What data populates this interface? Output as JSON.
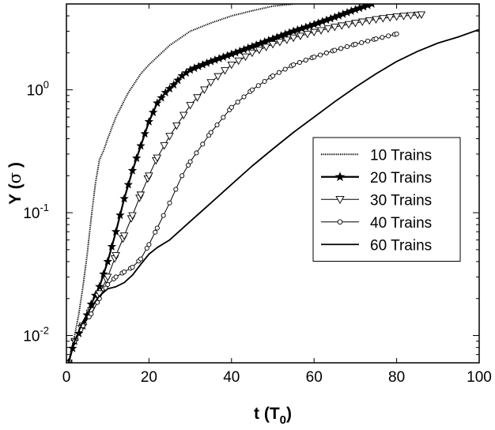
{
  "chart_data": {
    "type": "line",
    "title": "",
    "xlabel": "t (T",
    "xlabel_sub": "0",
    "xlabel_end": ")",
    "ylabel": "Y (",
    "ylabel_symbol": "σ",
    "ylabel_end": " )",
    "xlim": [
      0,
      100
    ],
    "ylim": [
      0.006,
      5
    ],
    "yscale": "log",
    "xticks": [
      0,
      20,
      40,
      60,
      80,
      100
    ],
    "yticks": [
      {
        "value": 0.01,
        "base": "10",
        "exp": "-2"
      },
      {
        "value": 0.1,
        "base": "10",
        "exp": "-1"
      },
      {
        "value": 1,
        "base": "10",
        "exp": "0"
      }
    ],
    "grid": false,
    "legend_position": "right",
    "series": [
      {
        "name": "10 Trains",
        "style": "dotted",
        "marker": "none",
        "x": [
          0.5,
          2,
          3,
          4,
          5,
          6,
          7,
          8,
          9,
          10,
          12,
          15,
          18,
          20,
          25,
          30,
          35,
          40,
          45,
          50,
          55
        ],
        "y": [
          0.006,
          0.01,
          0.015,
          0.025,
          0.045,
          0.09,
          0.17,
          0.27,
          0.32,
          0.4,
          0.6,
          0.95,
          1.35,
          1.6,
          2.3,
          3.0,
          3.5,
          4.0,
          4.4,
          4.8,
          5.0
        ]
      },
      {
        "name": "20 Trains",
        "style": "solid",
        "marker": "star",
        "x": [
          0.5,
          2,
          4,
          6,
          8,
          10,
          12,
          14,
          16,
          18,
          20,
          22,
          24,
          26,
          28,
          30,
          32,
          35,
          40,
          45,
          50,
          55,
          60,
          65,
          70,
          74
        ],
        "y": [
          0.006,
          0.009,
          0.012,
          0.018,
          0.025,
          0.04,
          0.07,
          0.13,
          0.22,
          0.35,
          0.55,
          0.78,
          0.95,
          1.1,
          1.3,
          1.45,
          1.55,
          1.7,
          1.95,
          2.25,
          2.6,
          3.0,
          3.4,
          3.9,
          4.5,
          5.0
        ]
      },
      {
        "name": "30 Trains",
        "style": "solid",
        "marker": "triangle-down",
        "x": [
          0.5,
          2,
          4,
          6,
          8,
          10,
          12,
          14,
          16,
          18,
          20,
          22,
          25,
          30,
          35,
          40,
          45,
          50,
          55,
          60,
          65,
          70,
          75,
          80,
          86
        ],
        "y": [
          0.006,
          0.009,
          0.012,
          0.016,
          0.022,
          0.03,
          0.045,
          0.065,
          0.095,
          0.14,
          0.2,
          0.28,
          0.42,
          0.75,
          1.15,
          1.6,
          2.0,
          2.35,
          2.65,
          2.95,
          3.25,
          3.5,
          3.75,
          3.95,
          4.1
        ]
      },
      {
        "name": "40 Trains",
        "style": "solid",
        "marker": "circle",
        "x": [
          0.5,
          2,
          4,
          6,
          8,
          10,
          12,
          14,
          16,
          18,
          20,
          22,
          25,
          28,
          30,
          35,
          40,
          45,
          50,
          55,
          60,
          65,
          70,
          75,
          80
        ],
        "y": [
          0.006,
          0.009,
          0.012,
          0.015,
          0.02,
          0.026,
          0.03,
          0.033,
          0.036,
          0.042,
          0.055,
          0.075,
          0.12,
          0.2,
          0.26,
          0.45,
          0.72,
          1.0,
          1.3,
          1.6,
          1.85,
          2.1,
          2.35,
          2.6,
          2.85
        ]
      },
      {
        "name": "60 Trains",
        "style": "solid",
        "marker": "none",
        "x": [
          0.5,
          2,
          4,
          6,
          8,
          10,
          12,
          14,
          16,
          18,
          20,
          22,
          25,
          28,
          30,
          35,
          40,
          45,
          50,
          55,
          60,
          65,
          70,
          75,
          80,
          85,
          90,
          95,
          100
        ],
        "y": [
          0.006,
          0.009,
          0.013,
          0.017,
          0.021,
          0.024,
          0.025,
          0.027,
          0.031,
          0.038,
          0.046,
          0.052,
          0.06,
          0.074,
          0.085,
          0.12,
          0.17,
          0.24,
          0.33,
          0.45,
          0.6,
          0.8,
          1.05,
          1.35,
          1.7,
          2.05,
          2.4,
          2.7,
          3.1
        ]
      }
    ]
  }
}
